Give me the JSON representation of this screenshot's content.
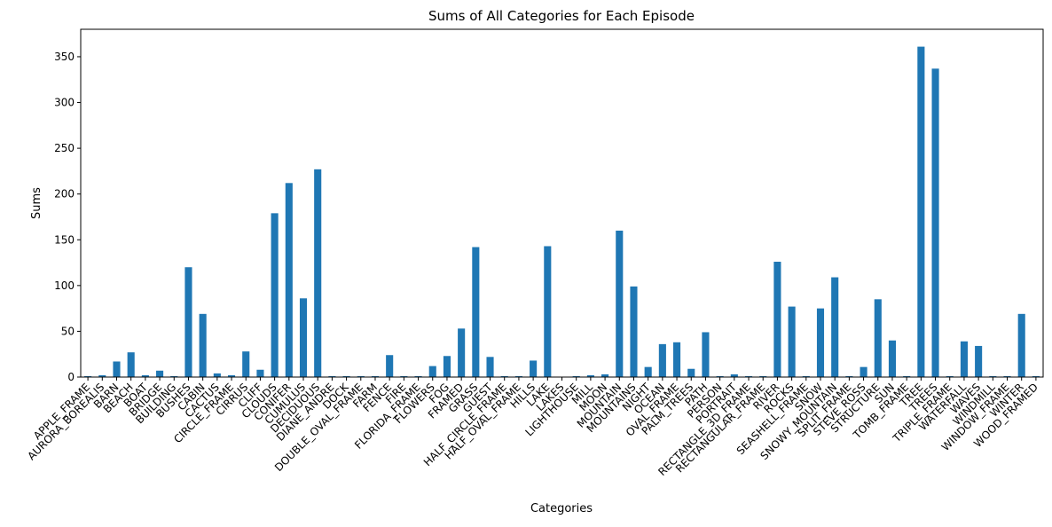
{
  "chart_data": {
    "type": "bar",
    "title": "Sums of All Categories for Each Episode",
    "xlabel": "Categories",
    "ylabel": "Sums",
    "ylim": [
      0,
      380
    ],
    "yticks": [
      0,
      50,
      100,
      150,
      200,
      250,
      300,
      350
    ],
    "grid": false,
    "legend": "none",
    "bar_color": "#1f77b4",
    "categories": [
      "APPLE_FRAME",
      "AURORA_BOREALIS",
      "BARN",
      "BEACH",
      "BOAT",
      "BRIDGE",
      "BUILDING",
      "BUSHES",
      "CABIN",
      "CACTUS",
      "CIRCLE_FRAME",
      "CIRRUS",
      "CLIFF",
      "CLOUDS",
      "CONIFER",
      "CUMULUS",
      "DECIDUOUS",
      "DIANE_ANDRE",
      "DOCK",
      "DOUBLE_OVAL_FRAME",
      "FARM",
      "FENCE",
      "FIRE",
      "FLORIDA_FRAME",
      "FLOWERS",
      "FOG",
      "FRAMED",
      "GRASS",
      "GUEST",
      "HALF_CIRCLE_FRAME",
      "HALF_OVAL_FRAME",
      "HILLS",
      "LAKE",
      "LAKES",
      "LIGHTHOUSE",
      "MILL",
      "MOON",
      "MOUNTAIN",
      "MOUNTAINS",
      "NIGHT",
      "OCEAN",
      "OVAL_FRAME",
      "PALM_TREES",
      "PATH",
      "PERSON",
      "PORTRAIT",
      "RECTANGLE_3D_FRAME",
      "RECTANGULAR_FRAME",
      "RIVER",
      "ROCKS",
      "SEASHELL_FRAME",
      "SNOW",
      "SNOWY_MOUNTAIN",
      "SPLIT_FRAME",
      "STEVE_ROSS",
      "STRUCTURE",
      "SUN",
      "TOMB_FRAME",
      "TREE",
      "TREES",
      "TRIPLE_FRAME",
      "WATERFALL",
      "WAVES",
      "WINDMILL",
      "WINDOW_FRAME",
      "WINTER",
      "WOOD_FRAMED"
    ],
    "values": [
      1,
      2,
      17,
      27,
      2,
      7,
      1,
      120,
      69,
      4,
      2,
      28,
      8,
      179,
      212,
      86,
      227,
      1,
      1,
      1,
      1,
      24,
      1,
      1,
      12,
      23,
      53,
      142,
      22,
      1,
      1,
      18,
      143,
      0,
      1,
      2,
      3,
      160,
      99,
      11,
      36,
      38,
      9,
      49,
      1,
      3,
      1,
      1,
      126,
      77,
      1,
      75,
      109,
      1,
      11,
      85,
      40,
      1,
      361,
      337,
      1,
      39,
      34,
      1,
      1,
      69,
      1
    ]
  }
}
